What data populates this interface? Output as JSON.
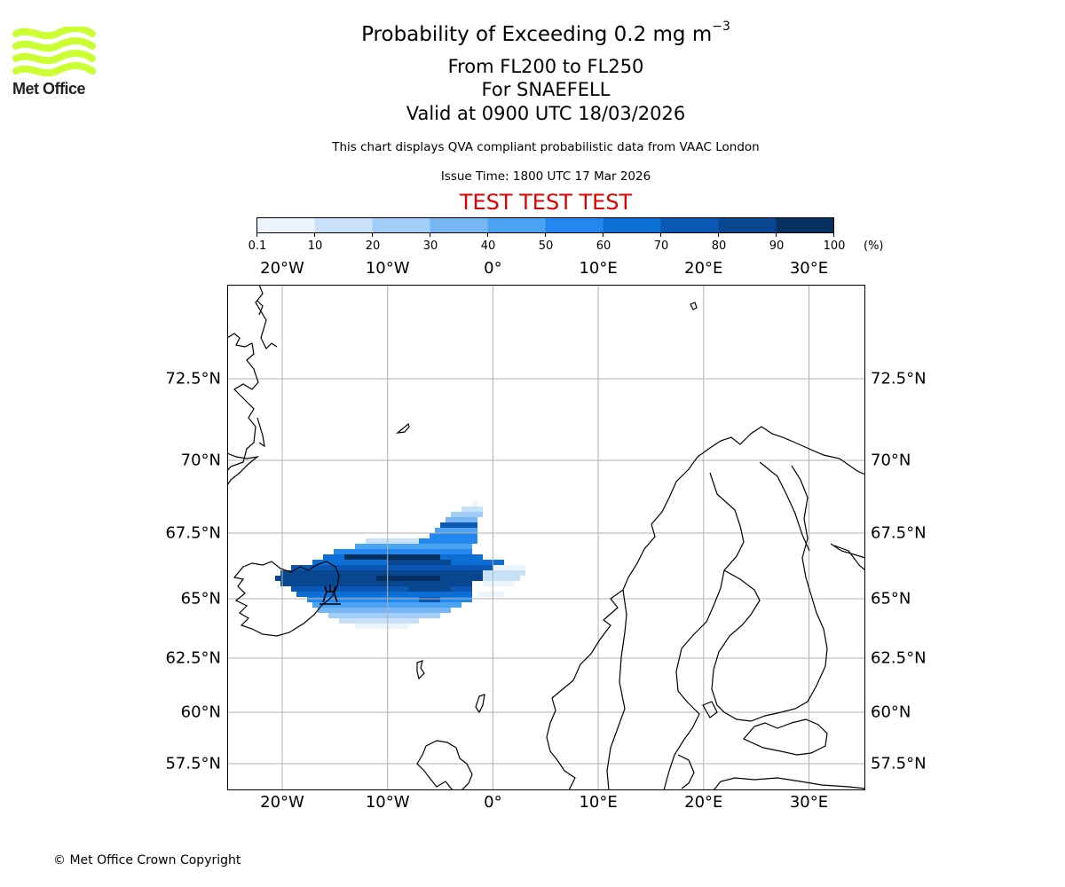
{
  "brand": {
    "logo_text": "Met Office",
    "logo_color": "#ccff33"
  },
  "title": {
    "main": "Probability of Exceeding 0.2 mg m",
    "main_exponent": "−3",
    "level": "From FL200 to FL250",
    "volcano": "For SNAEFELL",
    "valid": "Valid at 0900 UTC 18/03/2026"
  },
  "note": "This chart displays QVA compliant probabilistic data from VAAC London",
  "issue_time": "Issue Time: 1800 UTC 17 Mar 2026",
  "test_banner": {
    "text": "TEST TEST TEST",
    "color": "#dd0000"
  },
  "colorbar": {
    "ticks": [
      "0.1",
      "10",
      "20",
      "30",
      "40",
      "50",
      "60",
      "70",
      "80",
      "90",
      "100"
    ],
    "unit": "(%)",
    "colors": [
      "#ecf4fd",
      "#c8e1f9",
      "#a2cdf7",
      "#77b6f3",
      "#4ca3f1",
      "#2288ef",
      "#0b6fd6",
      "#0a58b4",
      "#084790",
      "#06305f"
    ]
  },
  "map": {
    "lon_labels": [
      "20°W",
      "10°W",
      "0°",
      "10°E",
      "20°E",
      "30°E"
    ],
    "lat_labels": [
      "72.5°N",
      "70°N",
      "67.5°N",
      "65°N",
      "62.5°N",
      "60°N",
      "57.5°N"
    ],
    "grid_color": "#b0b0b0",
    "coast_color": "#000000",
    "volcano_marker": "volcano-icon"
  },
  "copyright": "© Met Office Crown Copyright"
}
